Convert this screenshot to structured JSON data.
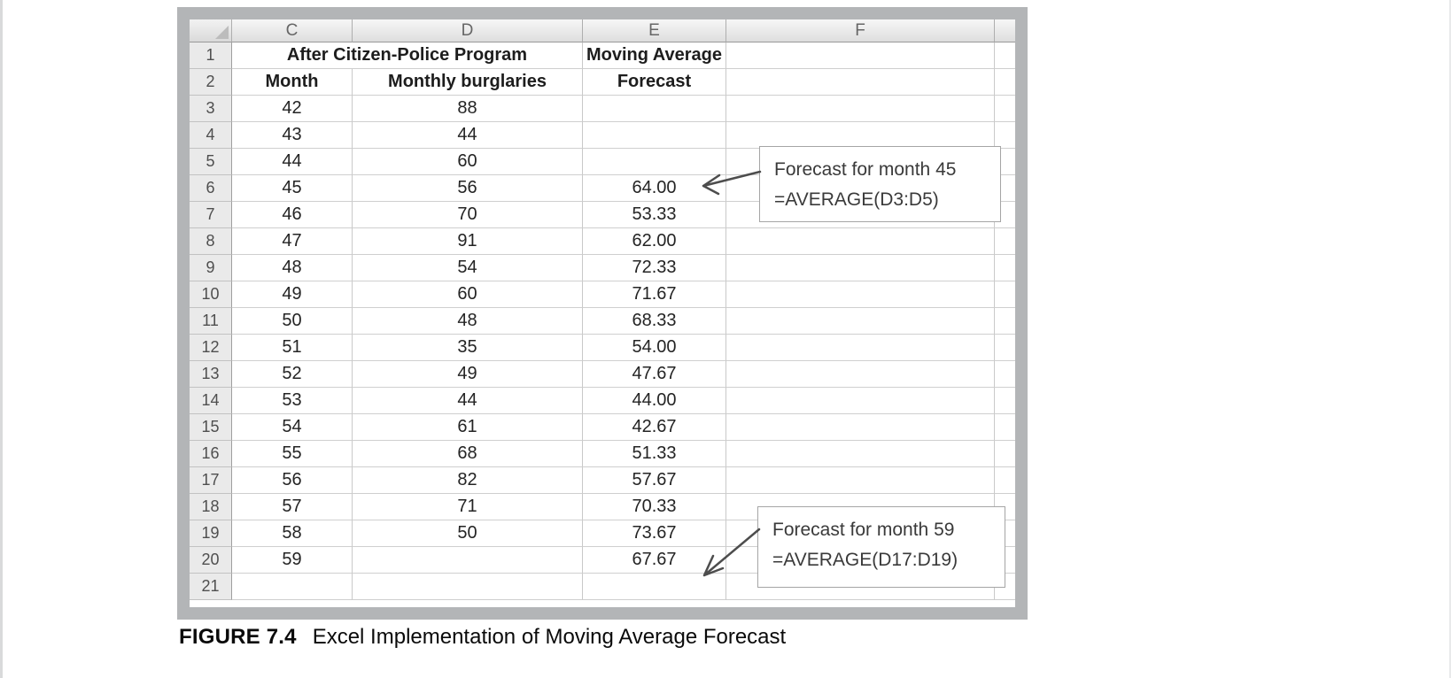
{
  "figure": {
    "label": "FIGURE 7.4",
    "caption": "Excel Implementation of Moving Average Forecast"
  },
  "sheet": {
    "columns": [
      "C",
      "D",
      "E",
      "F"
    ],
    "rows": [
      {
        "n": "1",
        "merged": true,
        "cd": "After Citizen-Police Program",
        "e": "Moving Average"
      },
      {
        "n": "2",
        "c": "Month",
        "d": "Monthly burglaries",
        "e": "Forecast"
      },
      {
        "n": "3",
        "c": "42",
        "d": "88",
        "e": ""
      },
      {
        "n": "4",
        "c": "43",
        "d": "44",
        "e": ""
      },
      {
        "n": "5",
        "c": "44",
        "d": "60",
        "e": ""
      },
      {
        "n": "6",
        "c": "45",
        "d": "56",
        "e": "64.00"
      },
      {
        "n": "7",
        "c": "46",
        "d": "70",
        "e": "53.33"
      },
      {
        "n": "8",
        "c": "47",
        "d": "91",
        "e": "62.00"
      },
      {
        "n": "9",
        "c": "48",
        "d": "54",
        "e": "72.33"
      },
      {
        "n": "10",
        "c": "49",
        "d": "60",
        "e": "71.67"
      },
      {
        "n": "11",
        "c": "50",
        "d": "48",
        "e": "68.33"
      },
      {
        "n": "12",
        "c": "51",
        "d": "35",
        "e": "54.00"
      },
      {
        "n": "13",
        "c": "52",
        "d": "49",
        "e": "47.67"
      },
      {
        "n": "14",
        "c": "53",
        "d": "44",
        "e": "44.00"
      },
      {
        "n": "15",
        "c": "54",
        "d": "61",
        "e": "42.67"
      },
      {
        "n": "16",
        "c": "55",
        "d": "68",
        "e": "51.33"
      },
      {
        "n": "17",
        "c": "56",
        "d": "82",
        "e": "57.67"
      },
      {
        "n": "18",
        "c": "57",
        "d": "71",
        "e": "70.33"
      },
      {
        "n": "19",
        "c": "58",
        "d": "50",
        "e": "73.67"
      },
      {
        "n": "20",
        "c": "59",
        "d": "",
        "e": "67.67"
      },
      {
        "n": "21",
        "c": "",
        "d": "",
        "e": ""
      }
    ]
  },
  "callouts": [
    {
      "line1": "Forecast for month 45",
      "line2": "=AVERAGE(D3:D5)"
    },
    {
      "line1": "Forecast for month 59",
      "line2": "=AVERAGE(D17:D19)"
    }
  ],
  "icons": {
    "select_all": "triangle"
  },
  "colors": {
    "frame_gray": "#b3b5b7",
    "header_gradient_top": "#f7f7f7",
    "header_gradient_bottom": "#dedede",
    "row_header_bg": "#eaeaea",
    "grid_line": "#c9c9c9",
    "cell_text": "#242424",
    "callout_border": "#a5a5a5",
    "arrow": "#4d4d4d"
  }
}
